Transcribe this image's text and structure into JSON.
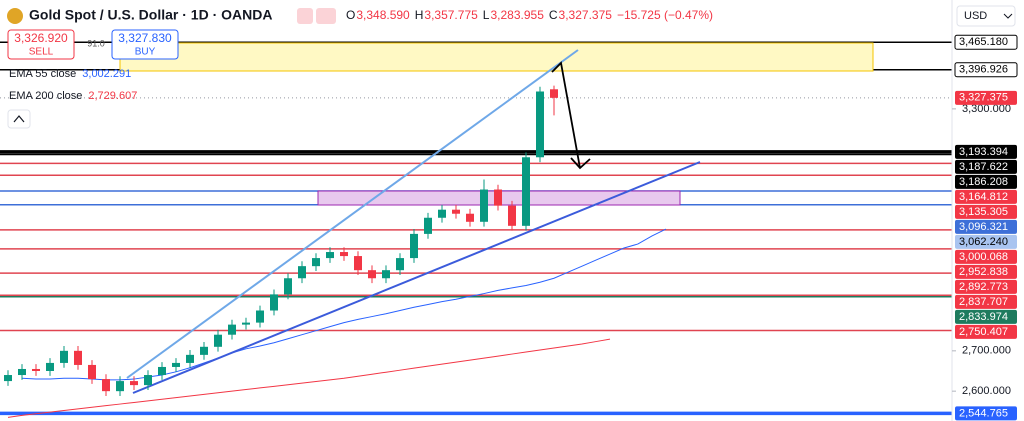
{
  "chart_data": {
    "type": "candlestick",
    "title": "Gold Spot / U.S. Dollar · 1D · OANDA",
    "ohlc": [
      {
        "key": "O",
        "value": "3,348.590"
      },
      {
        "key": "H",
        "value": "3,357.775"
      },
      {
        "key": "L",
        "value": "3,283.955"
      },
      {
        "key": "C",
        "value": "3,327.375"
      }
    ],
    "change": "−15.725 (−0.47%)",
    "currency": "USD",
    "sell": {
      "price": "3,326.920",
      "label": "SELL"
    },
    "spread": "91.0",
    "buy": {
      "price": "3,327.830",
      "label": "BUY"
    },
    "up_color": "#089981",
    "down_color": "#f23645",
    "ylim": [
      2526,
      3570
    ],
    "yticks": [
      {
        "value": 3300,
        "label": "3,300.000"
      },
      {
        "value": 2700,
        "label": "2,700.000"
      },
      {
        "value": 2600,
        "label": "2,600.000"
      }
    ],
    "open": [
      2625,
      2640,
      2655,
      2650,
      2670,
      2700,
      2665,
      2630,
      2600,
      2625,
      2615,
      2640,
      2660,
      2670,
      2690,
      2710,
      2740,
      2765,
      2770,
      2800,
      2840,
      2880,
      2910,
      2930,
      2945,
      2935,
      2900,
      2880,
      2900,
      2930,
      2990,
      3030,
      3050,
      3040,
      3020,
      3100,
      3060,
      3010,
      3180,
      3348.59
    ],
    "high": [
      2652,
      2667,
      2667,
      2682,
      2712,
      2712,
      2677,
      2642,
      2637,
      2637,
      2652,
      2672,
      2682,
      2702,
      2722,
      2752,
      2777,
      2782,
      2812,
      2852,
      2892,
      2922,
      2942,
      2957,
      2957,
      2947,
      2912,
      2912,
      2942,
      3002,
      3042,
      3062,
      3062,
      3052,
      3125,
      3112,
      3072,
      3192,
      3355,
      3357.775
    ],
    "low": [
      2613,
      2628,
      2638,
      2638,
      2658,
      2653,
      2618,
      2588,
      2588,
      2603,
      2603,
      2628,
      2648,
      2658,
      2678,
      2698,
      2728,
      2753,
      2758,
      2788,
      2828,
      2868,
      2898,
      2918,
      2923,
      2888,
      2868,
      2868,
      2888,
      2918,
      2978,
      3018,
      3028,
      3008,
      3008,
      3048,
      2998,
      2998,
      3168,
      3283.955
    ],
    "close": [
      2640,
      2655,
      2650,
      2670,
      2700,
      2665,
      2630,
      2600,
      2625,
      2615,
      2640,
      2660,
      2670,
      2690,
      2710,
      2740,
      2765,
      2770,
      2800,
      2840,
      2880,
      2910,
      2930,
      2945,
      2935,
      2900,
      2880,
      2900,
      2930,
      2990,
      3030,
      3050,
      3040,
      3020,
      3100,
      3060,
      3010,
      3180,
      3343.1,
      3327.375
    ],
    "lines": [
      {
        "name": "EMA 55 close",
        "value": "3,002.291",
        "color": "#2962ff",
        "values": [
          null,
          2632,
          2630,
          2630,
          2632,
          2632,
          2630,
          2628,
          2628,
          2630,
          2635,
          2640,
          2648,
          2658,
          2670,
          2682,
          2695,
          2705,
          2712,
          2720,
          2730,
          2740,
          2750,
          2760,
          2770,
          2778,
          2785,
          2792,
          2800,
          2808,
          2815,
          2822,
          2828,
          2835,
          2842,
          2850,
          2856,
          2862,
          2870,
          2880,
          2895,
          2910,
          2925,
          2940,
          2955,
          2965,
          2985,
          3002
        ]
      },
      {
        "name": "EMA 200 close",
        "value": "2,729.607",
        "color": "#f23645",
        "values": [
          2535,
          2540,
          2544,
          2548,
          2552,
          2556,
          2560,
          2564,
          2568,
          2572,
          2576,
          2580,
          2584,
          2588,
          2592,
          2596,
          2600,
          2604,
          2608,
          2612,
          2616,
          2620,
          2624,
          2628,
          2632,
          2637,
          2642,
          2647,
          2652,
          2657,
          2662,
          2667,
          2672,
          2677,
          2682,
          2687,
          2692,
          2697,
          2702,
          2707,
          2712,
          2717,
          2723,
          2729,
          null,
          null,
          null,
          null
        ]
      }
    ],
    "levels": [
      {
        "value": 3465.18,
        "label": "3,465.180",
        "color": "#000000",
        "background": "#ffffff",
        "text_color": "#000000",
        "line_width": 1.5
      },
      {
        "value": 3396.926,
        "label": "3,396.926",
        "color": "#000000",
        "background": "#ffffff",
        "text_color": "#000000",
        "line_width": 1.5
      },
      {
        "value": 3327.375,
        "label": "3,327.375",
        "color": "#9598a1",
        "background": "#f23645",
        "text_color": "#ffffff",
        "line_width": 1,
        "dashed": true
      },
      {
        "value": 3193.394,
        "label": "3,193.394",
        "color": "#000000",
        "background": "#000000",
        "text_color": "#ffffff",
        "line_width": 3.5
      },
      {
        "value": 3187.622,
        "label": "3,187.622",
        "color": "#000000",
        "background": "#000000",
        "text_color": "#ffffff",
        "line_width": 1
      },
      {
        "value": 3186.208,
        "label": "3,186.208",
        "color": "#000000",
        "background": "#000000",
        "text_color": "#ffffff",
        "line_width": 1
      },
      {
        "value": 3164.812,
        "label": "3,164.812",
        "color": "#e04450",
        "background": "#f23645",
        "text_color": "#ffffff",
        "line_width": 1.5
      },
      {
        "value": 3135.305,
        "label": "3,135.305",
        "color": "#e04450",
        "background": "#f23645",
        "text_color": "#ffffff",
        "line_width": 1.5
      },
      {
        "value": 3096.321,
        "label": "3,096.321",
        "color": "#3d6fd8",
        "background": "#3d6fd8",
        "text_color": "#ffffff",
        "line_width": 1.5
      },
      {
        "value": 3062.24,
        "label": "3,062.240",
        "color": "#3d6fd8",
        "background": "#a9c4f0",
        "text_color": "#000000",
        "line_width": 1.5
      },
      {
        "value": 3000.068,
        "label": "3,000.068",
        "color": "#e04450",
        "background": "#f23645",
        "text_color": "#ffffff",
        "line_width": 1.5
      },
      {
        "value": 2952.838,
        "label": "2,952.838",
        "color": "#e04450",
        "background": "#f23645",
        "text_color": "#ffffff",
        "line_width": 1.5
      },
      {
        "value": 2892.773,
        "label": "2,892.773",
        "color": "#e04450",
        "background": "#f23645",
        "text_color": "#ffffff",
        "line_width": 1.5
      },
      {
        "value": 2837.707,
        "label": "2,837.707",
        "color": "#e04450",
        "background": "#f23645",
        "text_color": "#ffffff",
        "line_width": 1.5
      },
      {
        "value": 2833.974,
        "label": "2,833.974",
        "color": "#1e7b5e",
        "background": "#1e7b5e",
        "text_color": "#ffffff",
        "line_width": 1.5
      },
      {
        "value": 2750.407,
        "label": "2,750.407",
        "color": "#e04450",
        "background": "#f23645",
        "text_color": "#ffffff",
        "line_width": 1.5
      },
      {
        "value": 2544.765,
        "label": "2,544.765",
        "color": "#2962ff",
        "background": "#2962ff",
        "text_color": "#ffffff",
        "line_width": 3.5
      }
    ]
  }
}
